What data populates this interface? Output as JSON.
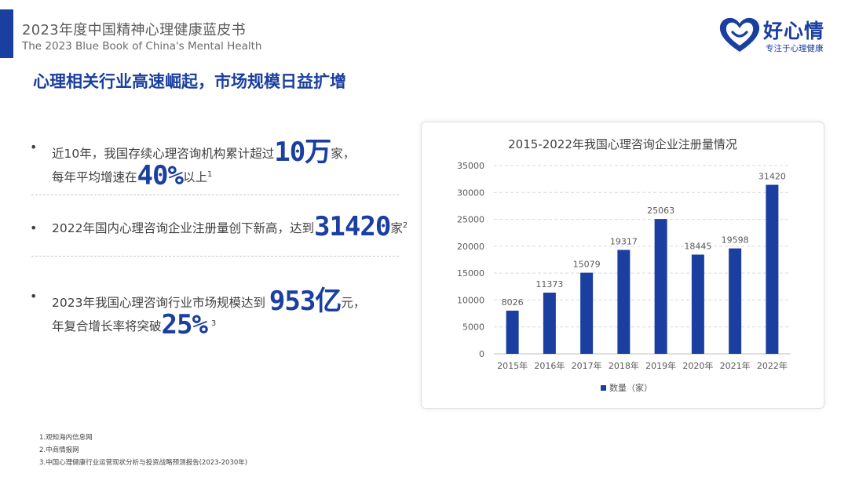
{
  "header": {
    "title_cn": "2023年度中国精神心理健康蓝皮书",
    "title_en": "The 2023 Blue Book of China's Mental Health"
  },
  "logo": {
    "name": "好心情",
    "slogan": "专注于心理健康",
    "icon": "heart-smile-icon",
    "color": "#1a3fa0"
  },
  "headline": "心理相关行业高速崛起，市场规模日益扩增",
  "bullets": [
    {
      "line1_pre": "近10年，我国存续心理咨询机构累计超过",
      "line1_big": "10万",
      "line1_post": "家，",
      "line2_pre": "每年平均增速在",
      "line2_big": "40%",
      "line2_post": "以上",
      "sup": "1"
    },
    {
      "line1_pre": "2022年国内心理咨询企业注册量创下新高，达到",
      "line1_big": "31420",
      "line1_post": "家",
      "sup": "2"
    },
    {
      "line1_pre": "2023年我国心理咨询行业市场规模达到",
      "line1_big": "953亿",
      "line1_post": "元，",
      "line2_pre": "年复合增长率将突破",
      "line2_big": "25%",
      "sup": "3"
    }
  ],
  "chart_data": {
    "type": "bar",
    "title": "2015-2022年我国心理咨询企业注册量情况",
    "categories": [
      "2015年",
      "2016年",
      "2017年",
      "2018年",
      "2019年",
      "2020年",
      "2021年",
      "2022年"
    ],
    "series": [
      {
        "name": "数量（家）",
        "values": [
          8026,
          11373,
          15079,
          19317,
          25063,
          18445,
          19598,
          31420
        ]
      }
    ],
    "ylim": [
      0,
      35000
    ],
    "yticks": [
      0,
      5000,
      10000,
      15000,
      20000,
      25000,
      30000,
      35000
    ],
    "data_labels": true,
    "grid": true,
    "legend": "bottom",
    "colors": {
      "bar": "#1a3fa0",
      "grid": "#d9d9d9",
      "text": "#595959"
    }
  },
  "footnotes": [
    "1.观知海内信息网",
    "2.中商情报网",
    "3.中国心理健康行业运营现状分析与投资战略预测报告(2023-2030年)"
  ]
}
